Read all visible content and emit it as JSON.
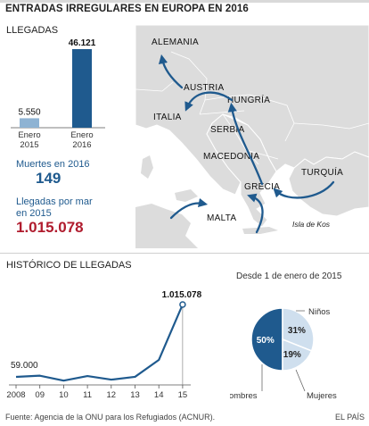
{
  "header": {
    "title": "ENTRADAS IRREGULARES EN EUROPA EN 2016"
  },
  "arrivals_box": {
    "label": "LLEGADAS",
    "deaths_label": "Muertes en 2016",
    "deaths_value": "149",
    "sea_label_line1": "Llegadas por mar",
    "sea_label_line2": "en 2015",
    "sea_value": "1.015.078"
  },
  "map": {
    "countries": [
      "ALEMANIA",
      "AUSTRIA",
      "HUNGRÍA",
      "ITALIA",
      "SERBIA",
      "MACEDONIA",
      "GRECIA",
      "TURQUÍA",
      "MALTA"
    ],
    "island": "Isla de Kos"
  },
  "history": {
    "label": "HISTÓRICO DE LLEGADAS"
  },
  "pie_box": {
    "title": "Desde 1 de enero de 2015"
  },
  "footer": {
    "source": "Fuente: Agencia de la ONU para los Refugiados (ACNUR).",
    "brand": "EL PAÍS"
  },
  "colors": {
    "accent": "#1f5a8e",
    "light_blue": "#8eb3d3",
    "pale_blue": "#cfdfee",
    "red": "#b01c2e",
    "map_land": "#dcdcdc",
    "map_sea": "#ffffff"
  },
  "chart_data": [
    {
      "type": "bar",
      "categories": [
        "Enero 2015",
        "Enero 2016"
      ],
      "category_lines": [
        [
          "Enero",
          "2015"
        ],
        [
          "Enero",
          "2016"
        ]
      ],
      "values": [
        5550,
        46121
      ],
      "value_labels": [
        "5.550",
        "46.121"
      ],
      "ylim": [
        0,
        46121
      ]
    },
    {
      "type": "line",
      "x": [
        "2008",
        "09",
        "10",
        "11",
        "12",
        "13",
        "14",
        "15"
      ],
      "values": [
        59000,
        75000,
        9600,
        70000,
        22500,
        60000,
        283000,
        1015078
      ],
      "annotations": {
        "first": "59.000",
        "last": "1.015.078"
      },
      "ylim": [
        0,
        1015078
      ]
    },
    {
      "type": "pie",
      "slices": [
        {
          "label": "Hombres",
          "value": 50
        },
        {
          "label": "Niños",
          "value": 31
        },
        {
          "label": "Mujeres",
          "value": 19
        }
      ],
      "value_labels": [
        "50%",
        "31%",
        "19%"
      ]
    }
  ]
}
